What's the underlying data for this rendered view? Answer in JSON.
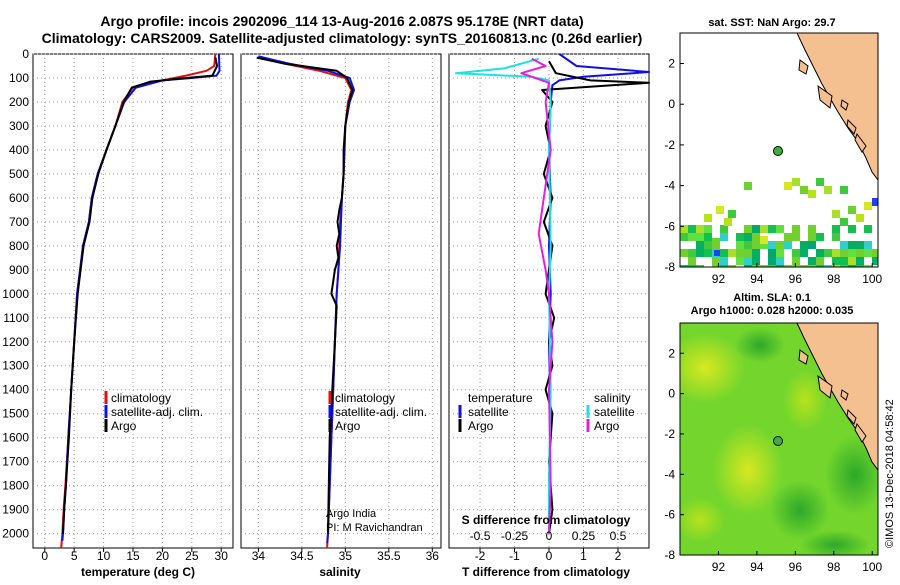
{
  "titles": {
    "line1": "Argo profile: incois 2902096_114 13-Aug-2016 2.087S 95.178E (NRT data)",
    "line2": "Climatology: CARS2009. Satellite-adjusted climatology: synTS_20160813.nc (0.26d earlier)"
  },
  "chart_data": [
    {
      "type": "line",
      "name": "temperature-profile",
      "xlabel": "temperature (deg C)",
      "xlim": [
        -2,
        32
      ],
      "xticks": [
        0,
        5,
        10,
        15,
        20,
        25,
        30
      ],
      "ylim": [
        2060,
        0
      ],
      "yticks": [
        0,
        100,
        200,
        300,
        400,
        500,
        600,
        700,
        800,
        900,
        1000,
        1100,
        1200,
        1300,
        1400,
        1500,
        1600,
        1700,
        1800,
        1900,
        2000
      ],
      "legend": [
        "climatology",
        "satellite-adj. clim.",
        "Argo"
      ],
      "series": [
        {
          "color": "#e01010",
          "x": [
            29.0,
            28.8,
            27.5,
            24.0,
            20.0,
            15.0,
            13.2,
            12.0,
            10.5,
            9.0,
            8.0,
            7.5,
            6.5,
            6.0,
            5.5,
            5.0,
            4.5,
            4.0,
            3.5,
            3.2,
            3.0,
            2.8
          ],
          "y": [
            0,
            50,
            70,
            90,
            110,
            140,
            200,
            300,
            400,
            500,
            600,
            700,
            800,
            900,
            1000,
            1200,
            1400,
            1600,
            1800,
            1900,
            2000,
            2060
          ]
        },
        {
          "color": "#1010e0",
          "x": [
            29.6,
            29.7,
            29.2,
            25.0,
            20.0,
            15.5,
            13.5,
            12.0,
            10.5,
            9.0,
            8.0,
            7.5,
            6.5,
            6.0,
            5.5,
            5.0,
            4.5,
            4.0,
            3.6,
            3.3,
            3.1,
            3.0
          ],
          "y": [
            0,
            70,
            90,
            100,
            110,
            140,
            200,
            300,
            400,
            500,
            600,
            700,
            800,
            900,
            1000,
            1200,
            1400,
            1600,
            1800,
            1900,
            2000,
            2030
          ]
        },
        {
          "color": "#000000",
          "x": [
            29.0,
            29.3,
            28.5,
            24.0,
            18.0,
            14.8,
            13.4,
            12.0,
            10.5,
            9.1,
            8.1,
            7.6,
            6.6,
            6.1,
            5.6,
            5.0,
            4.5,
            4.1,
            3.6,
            3.3,
            3.1
          ],
          "y": [
            15,
            50,
            90,
            100,
            115,
            140,
            200,
            300,
            400,
            500,
            600,
            700,
            800,
            900,
            1000,
            1200,
            1400,
            1600,
            1800,
            1900,
            2000
          ]
        }
      ]
    },
    {
      "type": "line",
      "name": "salinity-profile",
      "xlabel": "salinity",
      "xlim": [
        33.8,
        36.1
      ],
      "xticks": [
        34,
        34.5,
        35,
        35.5,
        36
      ],
      "xtick_labels": [
        "34",
        "34.5",
        "35",
        "35.5",
        "36"
      ],
      "ylim": [
        2060,
        0
      ],
      "legend": [
        "climatology",
        "satellite-adj. clim.",
        "Argo"
      ],
      "annotation": [
        "Argo India",
        "PI: M Ravichandran"
      ],
      "series": [
        {
          "color": "#e01010",
          "x": [
            34.0,
            34.3,
            34.7,
            35.0,
            35.07,
            35.03,
            35.0,
            34.99,
            34.98,
            34.96,
            34.94,
            34.93,
            34.92,
            34.9,
            34.88,
            34.86,
            34.84,
            34.82,
            34.8,
            34.79
          ],
          "y": [
            10,
            40,
            70,
            100,
            150,
            200,
            300,
            400,
            500,
            600,
            700,
            800,
            900,
            1000,
            1200,
            1400,
            1600,
            1800,
            2000,
            2060
          ]
        },
        {
          "color": "#1010e0",
          "x": [
            34.0,
            34.35,
            34.8,
            35.05,
            35.1,
            35.05,
            35.0,
            34.99,
            34.98,
            34.96,
            34.95,
            34.94,
            34.92,
            34.9,
            34.88,
            34.86,
            34.84,
            34.82,
            34.8,
            34.79
          ],
          "y": [
            10,
            40,
            70,
            100,
            150,
            200,
            300,
            400,
            500,
            600,
            700,
            800,
            900,
            1000,
            1200,
            1400,
            1600,
            1800,
            2000,
            2040
          ]
        },
        {
          "color": "#000000",
          "x": [
            33.98,
            34.3,
            34.9,
            35.02,
            35.08,
            35.04,
            35.0,
            34.98,
            34.98,
            34.96,
            34.93,
            34.91,
            34.93,
            34.9,
            34.92,
            34.88,
            34.84,
            34.9,
            34.88,
            34.85,
            34.82,
            34.81,
            34.8
          ],
          "y": [
            15,
            40,
            70,
            100,
            150,
            200,
            300,
            400,
            500,
            600,
            650,
            700,
            750,
            800,
            850,
            900,
            1000,
            1050,
            1200,
            1400,
            1600,
            1800,
            2000
          ]
        }
      ]
    },
    {
      "type": "line",
      "name": "difference-profile",
      "xlabel": "T difference from climatology",
      "xlim": [
        -2.9,
        2.9
      ],
      "xticks": [
        -2,
        -1,
        0,
        1,
        2
      ],
      "top_axis_label": "S difference from climatology",
      "top_ticks": [
        -0.5,
        -0.25,
        0,
        0.25,
        0.5
      ],
      "top_tick_labels": [
        "-0.5",
        "-0.25",
        "0",
        "0.25",
        "0.5"
      ],
      "ylim": [
        2060,
        0
      ],
      "legend_left_title": "temperature",
      "legend_left": [
        "satellite",
        "Argo"
      ],
      "legend_right_title": "salinity",
      "legend_right": [
        "satellite",
        "Argo"
      ],
      "series": [
        {
          "color": "#1010e0",
          "x": [
            0.3,
            0.8,
            2.9,
            1.0,
            0.3,
            0.1,
            0.05,
            0.0,
            0.05,
            0.0,
            0.05,
            0.0,
            0.05,
            0.0,
            0.0
          ],
          "y": [
            0,
            50,
            75,
            95,
            110,
            130,
            200,
            400,
            600,
            800,
            1000,
            1200,
            1500,
            1800,
            2000
          ]
        },
        {
          "color": "#000000",
          "x": [
            0.0,
            0.2,
            1.2,
            2.9,
            -0.2,
            0.1,
            -0.1,
            0.05,
            -0.15,
            0.1,
            -0.15,
            0.1,
            0.0,
            -0.1,
            0.15,
            0.0,
            0.1,
            -0.1,
            0.1,
            0.0,
            0.1,
            0.0
          ],
          "y": [
            30,
            80,
            110,
            120,
            150,
            200,
            300,
            400,
            500,
            600,
            700,
            800,
            900,
            1000,
            1100,
            1200,
            1300,
            1400,
            1500,
            1700,
            1900,
            2000
          ]
        },
        {
          "color": "#20e0e0",
          "x": [
            -0.3,
            -1.3,
            -2.7,
            -0.5,
            0.0,
            0.05,
            0.0,
            0.05,
            0.0,
            0.05,
            0.0,
            0.0
          ],
          "y": [
            20,
            60,
            80,
            95,
            110,
            200,
            400,
            800,
            1000,
            1400,
            1800,
            2000
          ]
        },
        {
          "color": "#e020e0",
          "x": [
            -0.5,
            -0.1,
            -0.8,
            0.0,
            -0.1,
            0.05,
            -0.15,
            -0.2,
            -0.3,
            -0.1,
            0.0,
            0.1,
            0.0,
            0.05,
            0.0
          ],
          "y": [
            20,
            50,
            80,
            120,
            200,
            400,
            600,
            650,
            750,
            900,
            1000,
            1200,
            1400,
            1800,
            2000
          ]
        }
      ]
    },
    {
      "type": "heatmap",
      "name": "sst-map",
      "title": "sat. SST: NaN Argo: 29.7",
      "xlim": [
        90,
        100.3
      ],
      "ylim": [
        -8,
        3.5
      ],
      "xticks": [
        92,
        94,
        96,
        98,
        100
      ],
      "yticks": [
        2,
        0,
        -2,
        -4,
        -6,
        -8
      ],
      "argo_position": {
        "lon": 95.178,
        "lat": -2.087
      }
    },
    {
      "type": "heatmap",
      "name": "sla-map",
      "title": "Altim. SLA: 0.1",
      "subtitle": "Argo h1000: 0.028 h2000: 0.035",
      "xlim": [
        90,
        100.3
      ],
      "ylim": [
        -8,
        3.5
      ],
      "xticks": [
        92,
        94,
        96,
        98,
        100
      ],
      "yticks": [
        2,
        0,
        -2,
        -4,
        -6,
        -8
      ],
      "argo_position": {
        "lon": 95.178,
        "lat": -2.087
      }
    }
  ],
  "credit": "©IMOS 13-Dec-2018 04:58:42",
  "colors": {
    "climatology": "#e01010",
    "satellite": "#1010e0",
    "argo": "#000000",
    "sat_salinity": "#20e0e0",
    "argo_salinity": "#e020e0",
    "land": "#f5c08f",
    "sla_base": "#6fd42a"
  }
}
